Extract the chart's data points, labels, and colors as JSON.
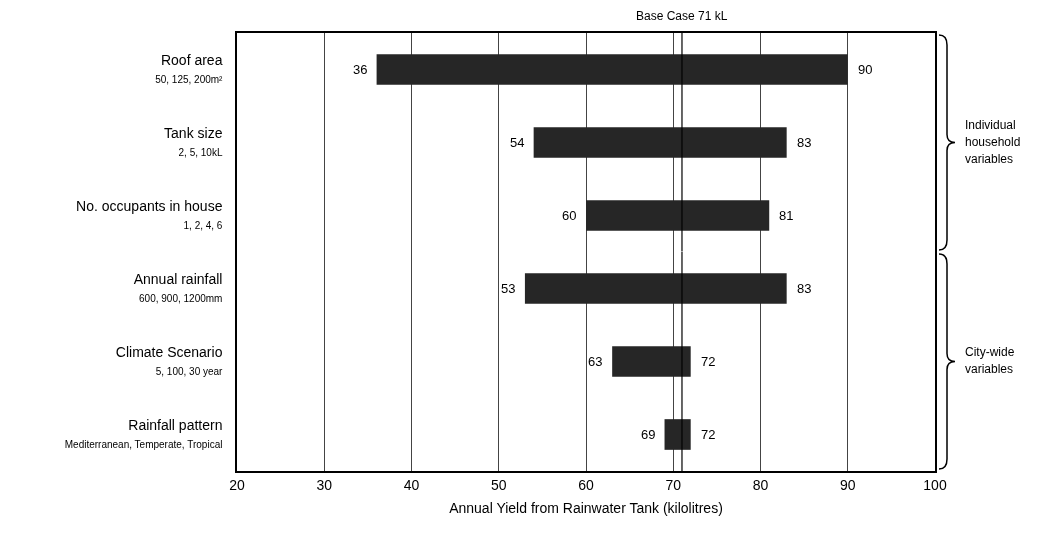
{
  "chart_data": [
    {
      "type": "bar",
      "orientation": "horizontal",
      "categories": [
        "Roof area\n50, 125, 200m²",
        "Tank size\n2, 5, 10kL",
        "No. occupants in house\n1, 2, 4, 6"
      ],
      "base": [
        36,
        54,
        60
      ],
      "values": [
        54,
        29,
        21
      ],
      "color": "#262626",
      "xlim": [
        20,
        100
      ],
      "xticks": [
        20,
        30,
        40,
        50,
        60,
        70,
        80,
        90,
        100
      ],
      "grid": "x",
      "tick_labels": "y",
      "ref_lines": [
        {
          "axis": "x",
          "value": 71,
          "label": "Base Case 71 kL",
          "color": "#000000"
        }
      ],
      "annotations": [
        {
          "text": "36",
          "x": 36,
          "y": "Roof area\n50, 125, 200m²"
        },
        {
          "text": "90",
          "x": 90,
          "y": "Roof area\n50, 125, 200m²"
        },
        {
          "text": "54",
          "x": 54,
          "y": "Tank size\n2, 5, 10kL"
        },
        {
          "text": "83",
          "x": 83,
          "y": "Tank size\n2, 5, 10kL"
        },
        {
          "text": "60",
          "x": 60,
          "y": "No. occupants in house\n1, 2, 4, 6"
        },
        {
          "text": "81",
          "x": 81,
          "y": "No. occupants in house\n1, 2, 4, 6"
        },
        "Individual household variables"
      ]
    },
    {
      "type": "bar",
      "orientation": "horizontal",
      "xlabel": "Annual Yield from Rainwater Tank (kilolitres)",
      "categories": [
        "Annual rainfall\n600, 900, 1200mm",
        "Climate Scenario\n5, 100, 30 year",
        "Rainfall pattern\nMediterranean, Temperate, Tropical"
      ],
      "base": [
        53,
        63,
        69
      ],
      "values": [
        30,
        9,
        3
      ],
      "color": "#262626",
      "xlim": [
        20,
        100
      ],
      "xticks": [
        20,
        30,
        40,
        50,
        60,
        70,
        80,
        90,
        100
      ],
      "grid": "x",
      "ref_lines": [
        {
          "axis": "x",
          "value": 71,
          "color": "#000000"
        }
      ],
      "annotations": [
        {
          "text": "53",
          "x": 53,
          "y": "Annual rainfall\n600, 900, 1200mm"
        },
        {
          "text": "83",
          "x": 83,
          "y": "Annual rainfall\n600, 900, 1200mm"
        },
        {
          "text": "63",
          "x": 63,
          "y": "Climate Scenario\n5, 100, 30 year"
        },
        {
          "text": "72",
          "x": 72,
          "y": "Climate Scenario\n5, 100, 30 year"
        },
        {
          "text": "69",
          "x": 69,
          "y": "Rainfall pattern\nMediterranean, Temperate, Tropical"
        },
        {
          "text": "72",
          "x": 72,
          "y": "Rainfall pattern\nMediterranean, Temperate, Tropical"
        },
        "City-wide variables"
      ]
    }
  ]
}
